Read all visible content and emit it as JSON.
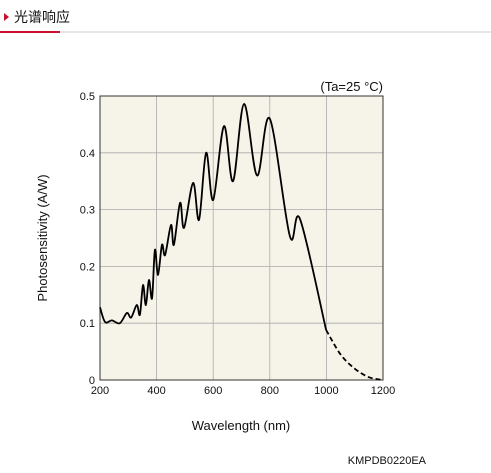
{
  "header": {
    "title": "光谱响应"
  },
  "chart_data": {
    "type": "line",
    "annotation": "(Ta=25 °C)",
    "xlabel": "Wavelength (nm)",
    "ylabel": "Photosensitivity (A/W)",
    "code": "KMPDB0220EA",
    "xlim": [
      200,
      1200
    ],
    "ylim": [
      0,
      0.5
    ],
    "xticks": [
      200,
      400,
      600,
      800,
      1000,
      1200
    ],
    "yticks": [
      0,
      0.1,
      0.2,
      0.3,
      0.4,
      0.5
    ],
    "grid": true,
    "background": "#f6f3e8",
    "series": [
      {
        "color": "#000000",
        "dash": false,
        "x": [
          200,
          218,
          242,
          270,
          295,
          310,
          330,
          341,
          352,
          362,
          373,
          384,
          394,
          405,
          419,
          430,
          451,
          461,
          483,
          497,
          529,
          550,
          575,
          600,
          638,
          670,
          709,
          755,
          800,
          871,
          907,
          999
        ],
        "values": [
          0.128,
          0.102,
          0.105,
          0.1,
          0.118,
          0.11,
          0.132,
          0.115,
          0.167,
          0.132,
          0.176,
          0.144,
          0.229,
          0.185,
          0.238,
          0.22,
          0.273,
          0.238,
          0.312,
          0.268,
          0.347,
          0.282,
          0.4,
          0.317,
          0.447,
          0.35,
          0.486,
          0.36,
          0.46,
          0.253,
          0.283,
          0.088
        ]
      },
      {
        "color": "#000000",
        "dash": true,
        "x": [
          999,
          1050,
          1100,
          1150,
          1200
        ],
        "values": [
          0.088,
          0.045,
          0.02,
          0.005,
          0
        ]
      }
    ]
  }
}
